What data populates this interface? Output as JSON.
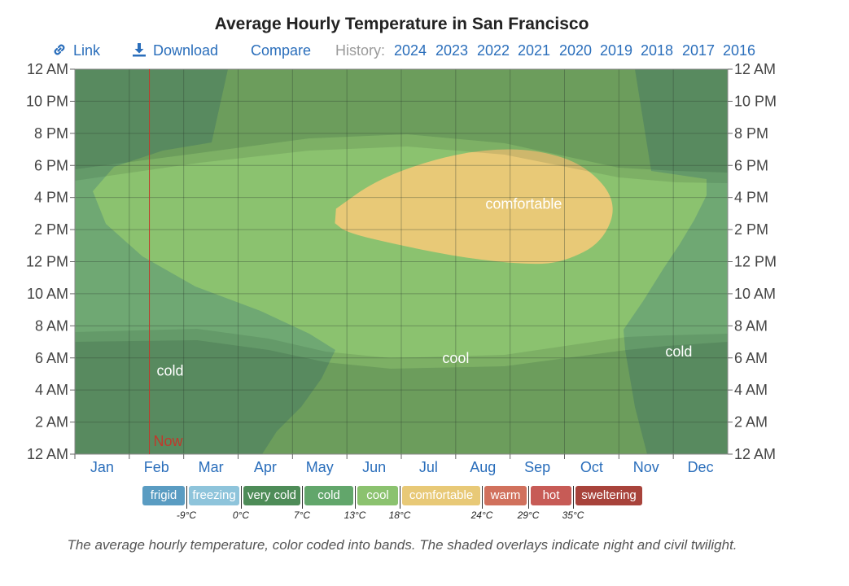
{
  "title": "Average Hourly Temperature in San Francisco",
  "toolbar": {
    "link": "Link",
    "download": "Download",
    "compare": "Compare",
    "history_label": "History:",
    "years": [
      "2024",
      "2023",
      "2022",
      "2021",
      "2020",
      "2019",
      "2018",
      "2017",
      "2016"
    ],
    "icons": {
      "link": "link-icon",
      "download": "download-icon"
    }
  },
  "chart_data": {
    "type": "heatmap",
    "x_labels": [
      "Jan",
      "Feb",
      "Mar",
      "Apr",
      "May",
      "Jun",
      "Jul",
      "Aug",
      "Sep",
      "Oct",
      "Nov",
      "Dec"
    ],
    "y_labels": [
      "12 AM",
      "10 PM",
      "8 PM",
      "6 PM",
      "4 PM",
      "2 PM",
      "12 PM",
      "10 AM",
      "8 AM",
      "6 AM",
      "4 AM",
      "2 AM",
      "12 AM"
    ],
    "grid": true,
    "bands": [
      {
        "name": "cold",
        "label": "cold",
        "color": "#5b9c66",
        "label_at": {
          "month": 1.75,
          "hour": 5.2
        }
      },
      {
        "name": "cool",
        "label": "cool",
        "color": "#8bc26f",
        "label_at": {
          "month": 7.0,
          "hour": 6.0
        }
      },
      {
        "name": "comfortable",
        "label": "comfortable",
        "color": "#e8c977",
        "label_at": {
          "month": 8.25,
          "hour": 15.6
        }
      },
      {
        "name": "cold-late",
        "label": "cold",
        "color": "#5b9c66",
        "label_at": {
          "month": 11.1,
          "hour": 6.4
        }
      }
    ],
    "comfortable_region": [
      [
        4.8,
        15.3
      ],
      [
        5.5,
        17.0
      ],
      [
        6.5,
        18.3
      ],
      [
        7.5,
        19.0
      ],
      [
        8.5,
        19.0
      ],
      [
        9.4,
        18.0
      ],
      [
        9.98,
        15.7
      ],
      [
        9.7,
        13.2
      ],
      [
        9.0,
        12.0
      ],
      [
        8.4,
        11.8
      ],
      [
        7.2,
        12.2
      ],
      [
        6.0,
        13.0
      ],
      [
        5.0,
        13.8
      ],
      [
        4.78,
        14.4
      ]
    ],
    "now": {
      "label": "Now",
      "month": 1.37
    },
    "legend": [
      {
        "name": "frigid",
        "color": "#5a9cc2"
      },
      {
        "name": "freezing",
        "color": "#8ec4db"
      },
      {
        "name": "very cold",
        "color": "#4e8c58"
      },
      {
        "name": "cold",
        "color": "#62a66b"
      },
      {
        "name": "cool",
        "color": "#8bc26f"
      },
      {
        "name": "comfortable",
        "color": "#e8c977"
      },
      {
        "name": "warm",
        "color": "#d1715d"
      },
      {
        "name": "hot",
        "color": "#c75b56"
      },
      {
        "name": "sweltering",
        "color": "#a8433b"
      }
    ],
    "thresholds": [
      "-9°C",
      "0°C",
      "7°C",
      "13°C",
      "18°C",
      "24°C",
      "29°C",
      "35°C"
    ]
  },
  "caption": "The average hourly temperature, color coded into bands. The shaded overlays indicate night and civil twilight."
}
